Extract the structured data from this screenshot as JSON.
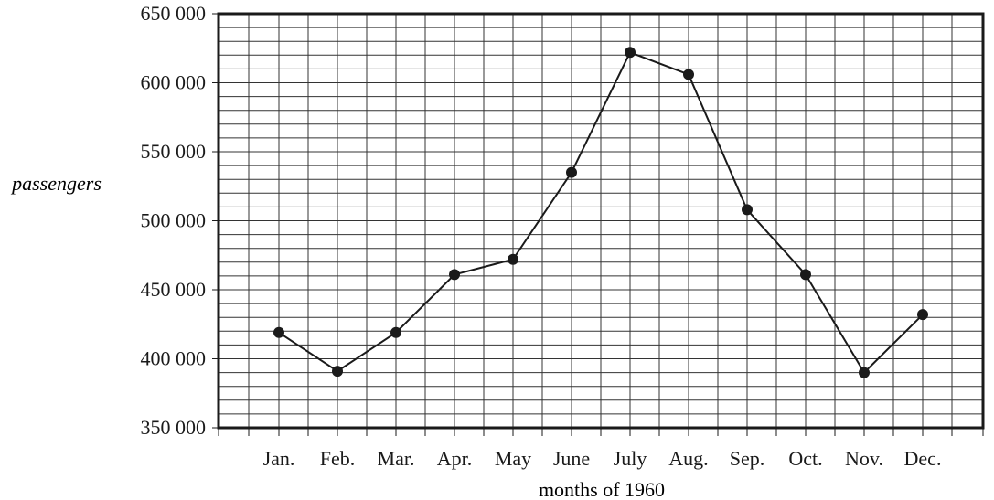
{
  "chart_data": {
    "type": "line",
    "title": "",
    "xlabel": "months of 1960",
    "ylabel": "passengers",
    "categories": [
      "Jan.",
      "Feb.",
      "Mar.",
      "Apr.",
      "May",
      "June",
      "July",
      "Aug.",
      "Sep.",
      "Oct.",
      "Nov.",
      "Dec."
    ],
    "series": [
      {
        "values": [
          419000,
          391000,
          419000,
          461000,
          472000,
          535000,
          622000,
          606000,
          508000,
          461000,
          390000,
          432000
        ]
      }
    ],
    "ylim": [
      350000,
      650000
    ],
    "yticks": [
      350000,
      400000,
      450000,
      500000,
      550000,
      600000,
      650000
    ],
    "ytick_labels": [
      "350 000",
      "400 000",
      "450 000",
      "500 000",
      "550 000",
      "600 000",
      "650 000"
    ],
    "minor_y_step": 10000,
    "grid": true,
    "colors": {
      "line": "#1a1a1a",
      "grid": "#333333",
      "frame": "#1a1a1a"
    }
  }
}
